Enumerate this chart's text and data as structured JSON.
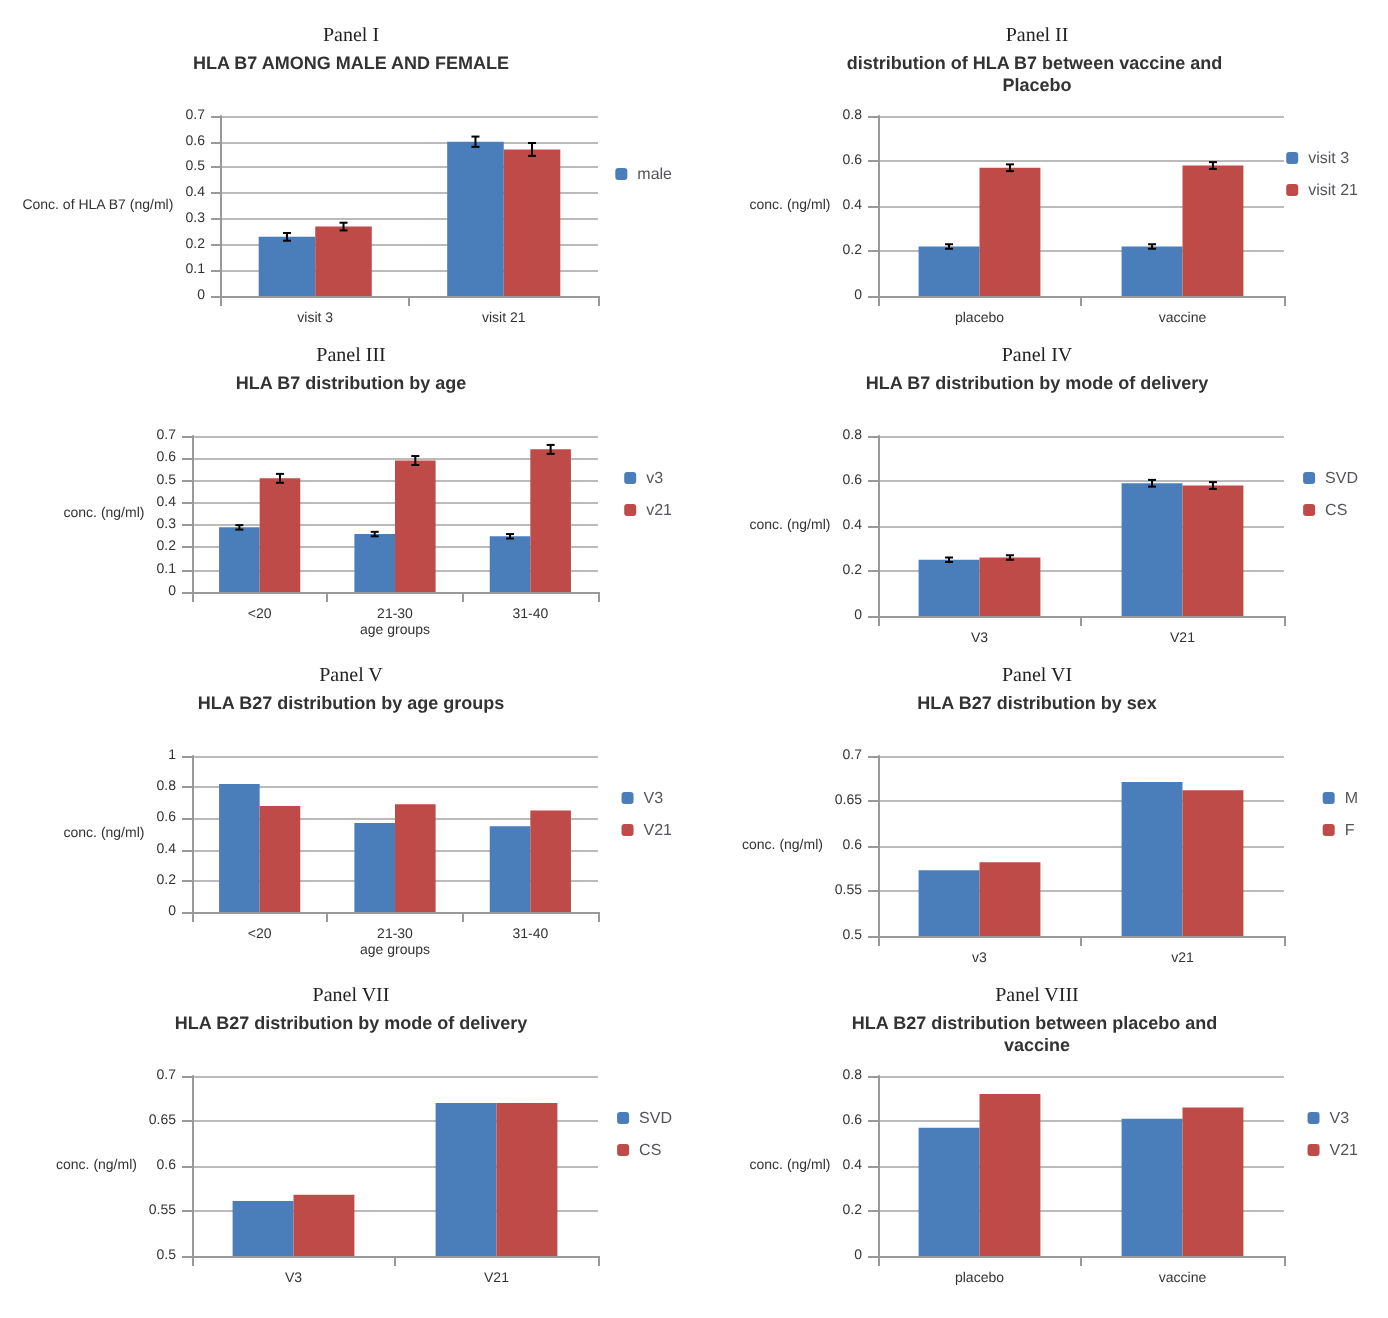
{
  "chart_data": [
    {
      "type": "bar",
      "title": "Panel I",
      "subtitle": "HLA B7 AMONG MALE AND FEMALE",
      "ylabel": "Conc. of HLA B7 (ng/ml)",
      "categories": [
        "visit 3",
        "visit 21"
      ],
      "ylim": [
        0,
        0.7
      ],
      "yticks": [
        0,
        0.1,
        0.2,
        0.3,
        0.4,
        0.5,
        0.6,
        0.7
      ],
      "grid": "y",
      "legend": "right",
      "series": [
        {
          "name": "male",
          "color": "#4a7ebb",
          "values": [
            0.23,
            0.6
          ],
          "errors": [
            0.015,
            0.02
          ]
        },
        {
          "color": "#be4b48",
          "values": [
            0.27,
            0.57
          ],
          "errors": [
            0.015,
            0.025
          ]
        }
      ]
    },
    {
      "type": "bar",
      "title": "Panel II",
      "subtitle": "distribution of HLA B7 between vaccine and Placebo",
      "ylabel": "conc. (ng/ml)",
      "categories": [
        "placebo",
        "vaccine"
      ],
      "ylim": [
        0,
        0.8
      ],
      "yticks": [
        0,
        0.2,
        0.4,
        0.6,
        0.8
      ],
      "grid": "y",
      "legend": "right",
      "series": [
        {
          "name": "visit 3",
          "color": "#4a7ebb",
          "values": [
            0.22,
            0.22
          ],
          "errors": [
            0.01,
            0.01
          ]
        },
        {
          "name": "visit 21",
          "color": "#be4b48",
          "values": [
            0.57,
            0.58
          ],
          "errors": [
            0.015,
            0.015
          ]
        }
      ]
    },
    {
      "type": "bar",
      "title": "Panel III",
      "subtitle": "HLA B7 distribution by age",
      "ylabel": "conc. (ng/ml)",
      "xlabel": "age groups",
      "categories": [
        "<20",
        "21-30",
        "31-40"
      ],
      "ylim": [
        0,
        0.7
      ],
      "yticks": [
        0,
        0.1,
        0.2,
        0.3,
        0.4,
        0.5,
        0.6,
        0.7
      ],
      "grid": "y",
      "legend": "right",
      "series": [
        {
          "name": "v3",
          "color": "#4a7ebb",
          "values": [
            0.29,
            0.26,
            0.25
          ],
          "errors": [
            0.01,
            0.01,
            0.01
          ]
        },
        {
          "name": "v21",
          "color": "#be4b48",
          "values": [
            0.51,
            0.59,
            0.64
          ],
          "errors": [
            0.02,
            0.02,
            0.02
          ]
        }
      ]
    },
    {
      "type": "bar",
      "title": "Panel IV",
      "subtitle": "HLA B7 distribution by mode of delivery",
      "ylabel": "conc. (ng/ml)",
      "categories": [
        "V3",
        "V21"
      ],
      "ylim": [
        0,
        0.8
      ],
      "yticks": [
        0,
        0.2,
        0.4,
        0.6,
        0.8
      ],
      "grid": "y",
      "legend": "right",
      "series": [
        {
          "name": "SVD",
          "color": "#4a7ebb",
          "values": [
            0.25,
            0.59
          ],
          "errors": [
            0.01,
            0.015
          ]
        },
        {
          "name": "CS",
          "color": "#be4b48",
          "values": [
            0.26,
            0.58
          ],
          "errors": [
            0.01,
            0.015
          ]
        }
      ]
    },
    {
      "type": "bar",
      "title": "Panel V",
      "subtitle": "HLA B27 distribution by age groups",
      "ylabel": "conc. (ng/ml)",
      "xlabel": "age groups",
      "categories": [
        "<20",
        "21-30",
        "31-40"
      ],
      "ylim": [
        0,
        1
      ],
      "yticks": [
        0,
        0.2,
        0.4,
        0.6,
        0.8,
        1
      ],
      "grid": "y",
      "legend": "right",
      "series": [
        {
          "name": "V3",
          "color": "#4a7ebb",
          "values": [
            0.82,
            0.57,
            0.55
          ]
        },
        {
          "name": "V21",
          "color": "#be4b48",
          "values": [
            0.68,
            0.69,
            0.65
          ]
        }
      ]
    },
    {
      "type": "bar",
      "title": "Panel VI",
      "subtitle": "HLA B27 distribution by sex",
      "ylabel": "conc. (ng/ml)",
      "categories": [
        "v3",
        "v21"
      ],
      "ylim": [
        0.5,
        0.7
      ],
      "yticks": [
        0.5,
        0.55,
        0.6,
        0.65,
        0.7
      ],
      "grid": "y",
      "legend": "right",
      "series": [
        {
          "name": "M",
          "color": "#4a7ebb",
          "values": [
            0.573,
            0.671
          ]
        },
        {
          "name": "F",
          "color": "#be4b48",
          "values": [
            0.582,
            0.662
          ]
        }
      ]
    },
    {
      "type": "bar",
      "title": "Panel VII",
      "subtitle": "HLA B27 distribution by mode of delivery",
      "ylabel": "conc. (ng/ml)",
      "categories": [
        "V3",
        "V21"
      ],
      "ylim": [
        0.5,
        0.7
      ],
      "yticks": [
        0.5,
        0.55,
        0.6,
        0.65,
        0.7
      ],
      "grid": "y",
      "legend": "right",
      "series": [
        {
          "name": "SVD",
          "color": "#4a7ebb",
          "values": [
            0.561,
            0.67
          ]
        },
        {
          "name": "CS",
          "color": "#be4b48",
          "values": [
            0.568,
            0.67
          ]
        }
      ]
    },
    {
      "type": "bar",
      "title": "Panel VIII",
      "subtitle": "HLA B27 distribution between placebo and vaccine",
      "ylabel": "conc. (ng/ml)",
      "categories": [
        "placebo",
        "vaccine"
      ],
      "ylim": [
        0,
        0.8
      ],
      "yticks": [
        0,
        0.2,
        0.4,
        0.6,
        0.8
      ],
      "grid": "y",
      "legend": "right",
      "series": [
        {
          "name": "V3",
          "color": "#4a7ebb",
          "values": [
            0.57,
            0.61
          ]
        },
        {
          "name": "V21",
          "color": "#be4b48",
          "values": [
            0.72,
            0.66
          ]
        }
      ]
    }
  ]
}
